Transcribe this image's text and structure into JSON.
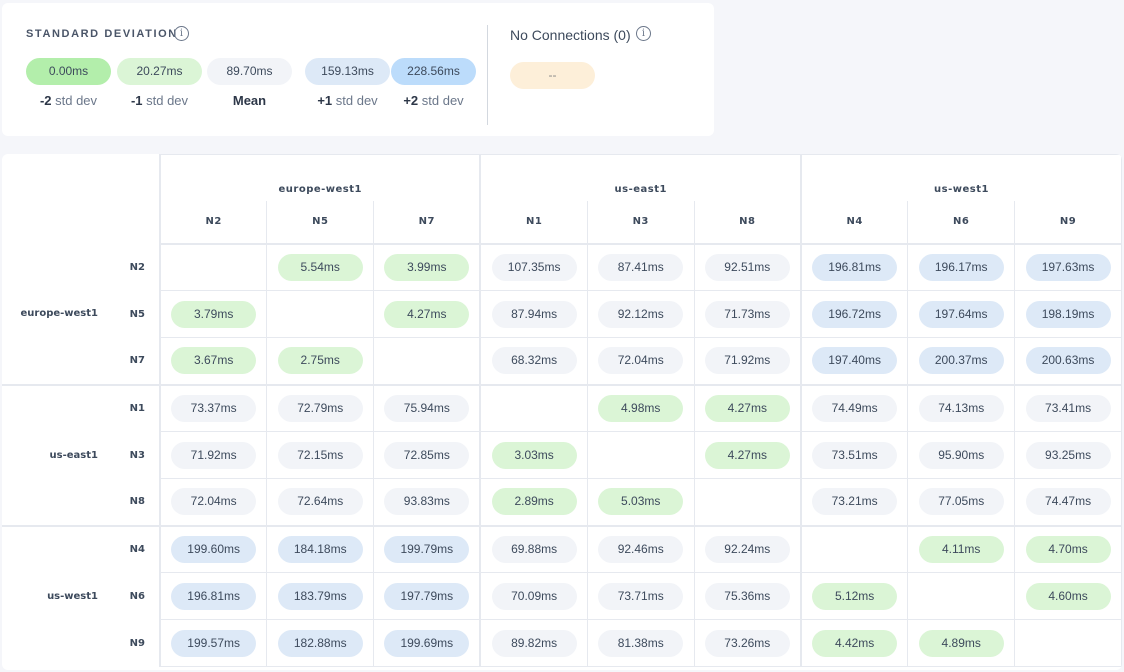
{
  "legend": {
    "title": "STANDARD DEVIATION",
    "items": [
      {
        "value": "0.00ms",
        "num": "-2",
        "text": "std dev",
        "color": "#b3eeab"
      },
      {
        "value": "20.27ms",
        "num": "-1",
        "text": "std dev",
        "color": "#dbf5d6"
      },
      {
        "value": "89.70ms",
        "num": "Mean",
        "text": "",
        "color": "#f2f4f8"
      },
      {
        "value": "159.13ms",
        "num": "+1",
        "text": "std dev",
        "color": "#dde9f7"
      },
      {
        "value": "228.56ms",
        "num": "+2",
        "text": "std dev",
        "color": "#bcdcfb"
      }
    ]
  },
  "no_connections": {
    "title": "No Connections (0)",
    "value": "--",
    "color": "#fdefd9"
  },
  "regions": [
    {
      "name": "europe-west1",
      "nodes": [
        "N2",
        "N5",
        "N7"
      ]
    },
    {
      "name": "us-east1",
      "nodes": [
        "N1",
        "N3",
        "N8"
      ]
    },
    {
      "name": "us-west1",
      "nodes": [
        "N4",
        "N6",
        "N9"
      ]
    }
  ],
  "matrix": [
    [
      "",
      "5.54ms",
      "3.99ms",
      "107.35ms",
      "87.41ms",
      "92.51ms",
      "196.81ms",
      "196.17ms",
      "197.63ms"
    ],
    [
      "3.79ms",
      "",
      "4.27ms",
      "87.94ms",
      "92.12ms",
      "71.73ms",
      "196.72ms",
      "197.64ms",
      "198.19ms"
    ],
    [
      "3.67ms",
      "2.75ms",
      "",
      "68.32ms",
      "72.04ms",
      "71.92ms",
      "197.40ms",
      "200.37ms",
      "200.63ms"
    ],
    [
      "73.37ms",
      "72.79ms",
      "75.94ms",
      "",
      "4.98ms",
      "4.27ms",
      "74.49ms",
      "74.13ms",
      "73.41ms"
    ],
    [
      "71.92ms",
      "72.15ms",
      "72.85ms",
      "3.03ms",
      "",
      "4.27ms",
      "73.51ms",
      "95.90ms",
      "93.25ms"
    ],
    [
      "72.04ms",
      "72.64ms",
      "93.83ms",
      "2.89ms",
      "5.03ms",
      "",
      "73.21ms",
      "77.05ms",
      "74.47ms"
    ],
    [
      "199.60ms",
      "184.18ms",
      "199.79ms",
      "69.88ms",
      "92.46ms",
      "92.24ms",
      "",
      "4.11ms",
      "4.70ms"
    ],
    [
      "196.81ms",
      "183.79ms",
      "197.79ms",
      "70.09ms",
      "73.71ms",
      "75.36ms",
      "5.12ms",
      "",
      "4.60ms"
    ],
    [
      "199.57ms",
      "182.88ms",
      "199.69ms",
      "89.82ms",
      "81.38ms",
      "73.26ms",
      "4.42ms",
      "4.89ms",
      ""
    ]
  ]
}
